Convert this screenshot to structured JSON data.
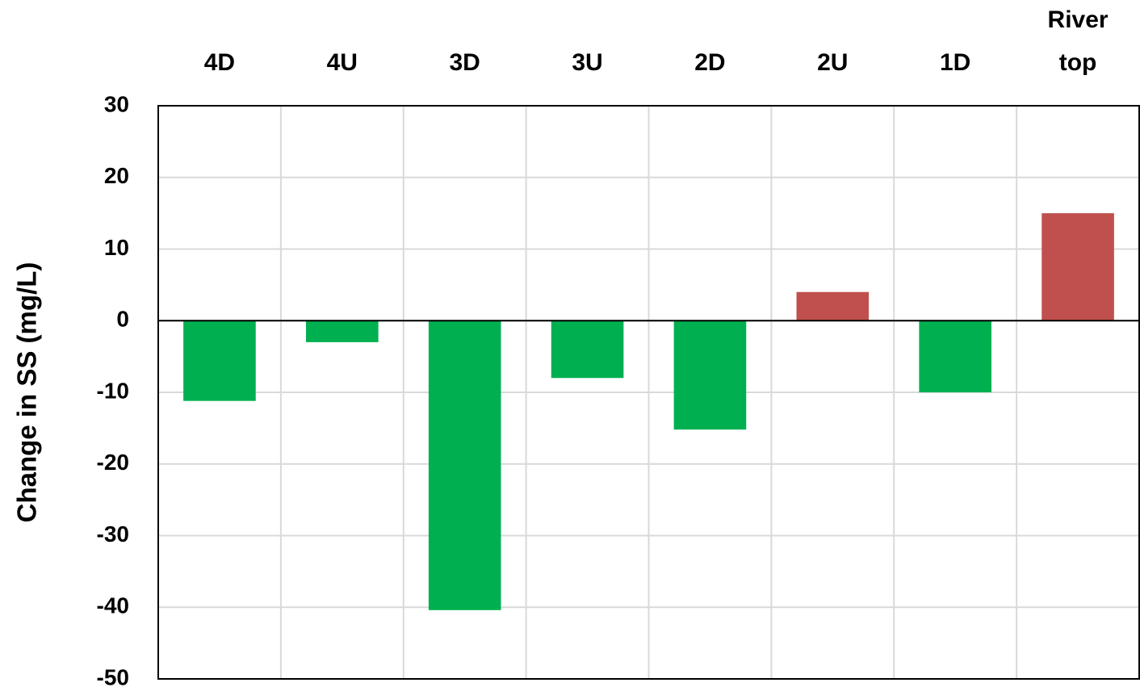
{
  "chart_data": {
    "type": "bar",
    "y_axis_label": "Change in SS (mg/L)",
    "categories": [
      "4D",
      "4U",
      "3D",
      "3U",
      "2D",
      "2U",
      "1D",
      "River top"
    ],
    "values": [
      -11.2,
      -3,
      -40.4,
      -8,
      -15.2,
      4,
      -10,
      15
    ],
    "colors": [
      "#00b050",
      "#00b050",
      "#00b050",
      "#00b050",
      "#00b050",
      "#c0504d",
      "#00b050",
      "#c0504d"
    ],
    "ylim": [
      -50,
      30
    ],
    "yticks": [
      -50,
      -40,
      -30,
      -20,
      -10,
      0,
      10,
      20,
      30
    ],
    "grid": true
  }
}
